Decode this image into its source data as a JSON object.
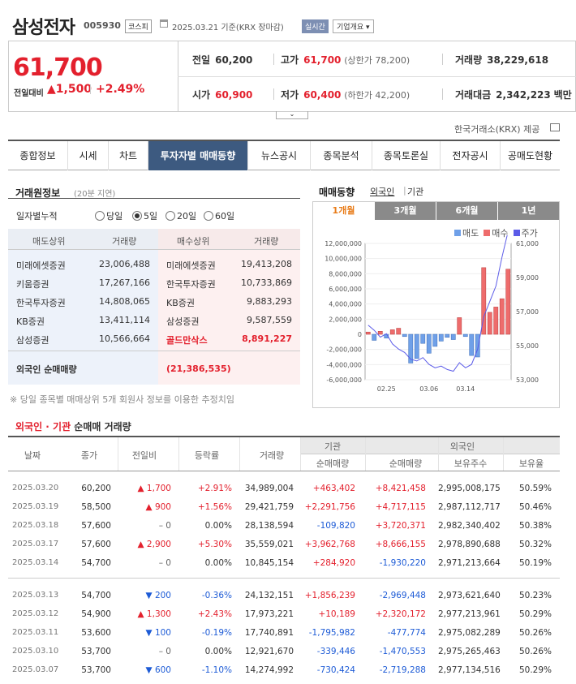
{
  "header": {
    "name": "삼성전자",
    "code": "005930",
    "market": "코스피",
    "date": "2025.03.21 기준(KRX 장마감)",
    "realtime": "실시간",
    "overview": "기업개요 ▾"
  },
  "price": {
    "current": "61,700",
    "prev_label": "전일대비",
    "change": "▲1,500",
    "pct": "+2.49%",
    "stats": {
      "prev_close_label": "전일",
      "prev_close": "60,200",
      "open_label": "시가",
      "open": "60,900",
      "high_label": "고가",
      "high": "61,700",
      "upper_limit": "(상한가 78,200)",
      "low_label": "저가",
      "low": "60,400",
      "lower_limit": "(하한가 42,200)",
      "volume_label": "거래량",
      "volume": "38,229,618",
      "amount_label": "거래대금",
      "amount": "2,342,223",
      "amount_unit": "백만"
    }
  },
  "source": "한국거래소(KRX) 제공",
  "tabs": [
    "종합정보",
    "시세",
    "차트",
    "투자자별 매매동향",
    "뉴스공시",
    "종목분석",
    "종목토론실",
    "전자공시",
    "공매도현황"
  ],
  "trading": {
    "title": "거래원정보",
    "sub": "(20분 지연)",
    "accum_label": "일자별누적",
    "periods": [
      "당일",
      "5일",
      "20일",
      "60일"
    ],
    "headers": [
      "매도상위",
      "거래량",
      "매수상위",
      "거래량"
    ],
    "sell": [
      {
        "name": "미래에셋증권",
        "vol": "23,006,488"
      },
      {
        "name": "키움증권",
        "vol": "17,267,166"
      },
      {
        "name": "한국투자증권",
        "vol": "14,808,065"
      },
      {
        "name": "KB증권",
        "vol": "13,411,114"
      },
      {
        "name": "삼성증권",
        "vol": "10,566,664"
      }
    ],
    "buy": [
      {
        "name": "미래에셋증권",
        "vol": "19,413,208"
      },
      {
        "name": "한국투자증권",
        "vol": "10,733,869"
      },
      {
        "name": "KB증권",
        "vol": "9,883,293"
      },
      {
        "name": "삼성증권",
        "vol": "9,587,559"
      },
      {
        "name": "골드만삭스",
        "vol": "8,891,227"
      }
    ],
    "foreign_label": "외국인 순매매량",
    "foreign_val": "(21,386,535)",
    "note": "※ 당일 종목별 매매상위 5개 회원사 정보를 이용한 추정치임"
  },
  "trend": {
    "title": "매매동향",
    "foreign": "외국인",
    "inst": "기관",
    "periods": [
      "1개월",
      "3개월",
      "6개월",
      "1년"
    ],
    "legend": [
      "매도",
      "매수",
      "주가"
    ]
  },
  "chart_data": {
    "type": "bar",
    "series": [
      {
        "name": "매도",
        "values": [
          0,
          -800000,
          0,
          -500000,
          0,
          0,
          -300000,
          -3800000,
          -3200000,
          -1200000,
          -2500000,
          -1600000,
          -900000,
          -400000,
          -700000,
          0,
          -300000,
          -2800000,
          -3000000,
          0,
          0,
          0,
          0,
          0
        ]
      },
      {
        "name": "매수",
        "values": [
          300000,
          0,
          400000,
          0,
          600000,
          800000,
          0,
          0,
          0,
          0,
          0,
          0,
          0,
          0,
          0,
          2200000,
          0,
          0,
          0,
          8800000,
          2900000,
          3600000,
          4700000,
          8600000
        ]
      },
      {
        "name": "주가",
        "values": [
          56200,
          55900,
          55500,
          55700,
          55100,
          54800,
          54600,
          54200,
          54100,
          54300,
          53900,
          53700,
          53800,
          53600,
          53500,
          54000,
          53700,
          53900,
          54800,
          56700,
          57600,
          58500,
          60200,
          61700
        ]
      }
    ],
    "xticks": [
      "02.25",
      "03.06",
      "03.14"
    ],
    "y_left_ticks": [
      "12,000,000",
      "10,000,000",
      "8,000,000",
      "6,000,000",
      "4,000,000",
      "2,000,000",
      "0",
      "-2,000,000",
      "-4,000,000",
      "-6,000,000"
    ],
    "y_right_ticks": [
      "61,000",
      "59,000",
      "57,000",
      "55,000",
      "53,000"
    ],
    "ylim": [
      -6000000,
      12000000
    ],
    "y2lim": [
      53000,
      61000
    ]
  },
  "net": {
    "title_a": "외국인 · 기관",
    "title_b": " 순매매 거래량",
    "headers": {
      "date": "날짜",
      "close": "종가",
      "diff": "전일비",
      "rate": "등락률",
      "vol": "거래량",
      "inst": "기관",
      "foreign": "외국인",
      "inst_net": "순매매량",
      "for_net": "순매매량",
      "hold": "보유주수",
      "ratio": "보유율"
    },
    "rows": [
      {
        "date": "2025.03.20",
        "close": "60,200",
        "diff": "▲ 1,700",
        "dir": "up",
        "rate": "+2.91%",
        "vol": "34,989,004",
        "inst": "+463,402",
        "foreign": "+8,421,458",
        "hold": "2,995,008,175",
        "ratio": "50.59%"
      },
      {
        "date": "2025.03.19",
        "close": "58,500",
        "diff": "▲ 900",
        "dir": "up",
        "rate": "+1.56%",
        "vol": "29,421,759",
        "inst": "+2,291,756",
        "foreign": "+4,717,115",
        "hold": "2,987,112,717",
        "ratio": "50.46%"
      },
      {
        "date": "2025.03.18",
        "close": "57,600",
        "diff": "– 0",
        "dir": "none",
        "rate": "0.00%",
        "vol": "28,138,594",
        "inst": "-109,820",
        "foreign": "+3,720,371",
        "hold": "2,982,340,402",
        "ratio": "50.38%"
      },
      {
        "date": "2025.03.17",
        "close": "57,600",
        "diff": "▲ 2,900",
        "dir": "up",
        "rate": "+5.30%",
        "vol": "35,559,021",
        "inst": "+3,962,768",
        "foreign": "+8,666,155",
        "hold": "2,978,890,688",
        "ratio": "50.32%"
      },
      {
        "date": "2025.03.14",
        "close": "54,700",
        "diff": "– 0",
        "dir": "none",
        "rate": "0.00%",
        "vol": "10,845,154",
        "inst": "+284,920",
        "foreign": "-1,930,220",
        "hold": "2,971,213,664",
        "ratio": "50.19%"
      },
      {
        "date": "2025.03.13",
        "close": "54,700",
        "diff": "▼ 200",
        "dir": "down",
        "rate": "-0.36%",
        "vol": "24,132,151",
        "inst": "+1,856,239",
        "foreign": "-2,969,448",
        "hold": "2,973,621,640",
        "ratio": "50.23%"
      },
      {
        "date": "2025.03.12",
        "close": "54,900",
        "diff": "▲ 1,300",
        "dir": "up",
        "rate": "+2.43%",
        "vol": "17,973,221",
        "inst": "+10,189",
        "foreign": "+2,320,172",
        "hold": "2,977,213,961",
        "ratio": "50.29%"
      },
      {
        "date": "2025.03.11",
        "close": "53,600",
        "diff": "▼ 100",
        "dir": "down",
        "rate": "-0.19%",
        "vol": "17,740,891",
        "inst": "-1,795,982",
        "foreign": "-477,774",
        "hold": "2,975,082,289",
        "ratio": "50.26%"
      },
      {
        "date": "2025.03.10",
        "close": "53,700",
        "diff": "– 0",
        "dir": "none",
        "rate": "0.00%",
        "vol": "12,921,670",
        "inst": "-339,446",
        "foreign": "-1,470,553",
        "hold": "2,975,265,463",
        "ratio": "50.26%"
      },
      {
        "date": "2025.03.07",
        "close": "53,700",
        "diff": "▼ 600",
        "dir": "down",
        "rate": "-1.10%",
        "vol": "14,274,992",
        "inst": "-730,424",
        "foreign": "-2,719,288",
        "hold": "2,977,134,516",
        "ratio": "50.29%"
      }
    ]
  }
}
